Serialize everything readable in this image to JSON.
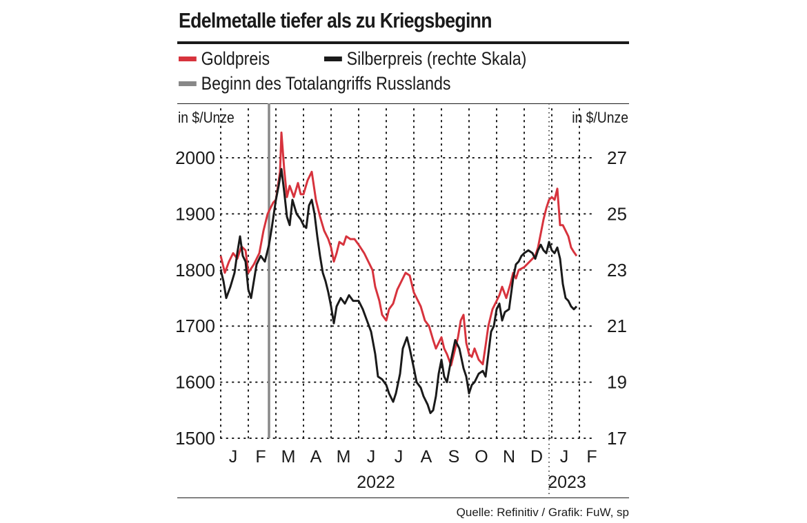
{
  "chart_data": {
    "type": "line",
    "title": "Edelmetalle tiefer als zu Kriegsbeginn",
    "legend": [
      {
        "name": "Goldpreis",
        "color": "#d7333d"
      },
      {
        "name": "Silberpreis (rechte Skala)",
        "color": "#1a1a1a"
      },
      {
        "name": "Beginn des Totalangriffs Russlands",
        "color": "#888888"
      }
    ],
    "left_axis": {
      "label": "in $/Unze",
      "ylim": [
        1500,
        2050
      ],
      "ticks": [
        1500,
        1600,
        1700,
        1800,
        1900,
        2000
      ]
    },
    "right_axis": {
      "label": "in $/Unze",
      "ylim": [
        17,
        28
      ],
      "ticks": [
        17,
        19,
        21,
        23,
        25,
        27
      ]
    },
    "x_axis": {
      "months": [
        "J",
        "F",
        "M",
        "A",
        "M",
        "J",
        "J",
        "A",
        "S",
        "O",
        "N",
        "D",
        "J",
        "F"
      ],
      "years": [
        {
          "label": "2022"
        },
        {
          "label": "2023"
        }
      ],
      "range_months": [
        0,
        13.8
      ]
    },
    "grid": "dotted",
    "event_marker": {
      "month": 1.75,
      "label": "Beginn des Totalangriffs Russlands"
    },
    "series": [
      {
        "name": "Goldpreis",
        "axis": "left",
        "color": "#d7333d",
        "points": [
          [
            0,
            1825
          ],
          [
            0.15,
            1795
          ],
          [
            0.3,
            1815
          ],
          [
            0.45,
            1830
          ],
          [
            0.6,
            1820
          ],
          [
            0.75,
            1842
          ],
          [
            0.9,
            1835
          ],
          [
            1.0,
            1795
          ],
          [
            1.2,
            1810
          ],
          [
            1.4,
            1830
          ],
          [
            1.55,
            1870
          ],
          [
            1.7,
            1900
          ],
          [
            1.75,
            1905
          ],
          [
            1.9,
            1920
          ],
          [
            2.0,
            1925
          ],
          [
            2.15,
            1975
          ],
          [
            2.2,
            2045
          ],
          [
            2.3,
            1980
          ],
          [
            2.4,
            1930
          ],
          [
            2.5,
            1950
          ],
          [
            2.65,
            1930
          ],
          [
            2.8,
            1955
          ],
          [
            2.9,
            1935
          ],
          [
            3.0,
            1935
          ],
          [
            3.15,
            1960
          ],
          [
            3.3,
            1975
          ],
          [
            3.45,
            1925
          ],
          [
            3.6,
            1895
          ],
          [
            3.75,
            1870
          ],
          [
            3.9,
            1855
          ],
          [
            4.0,
            1840
          ],
          [
            4.1,
            1815
          ],
          [
            4.2,
            1830
          ],
          [
            4.3,
            1850
          ],
          [
            4.45,
            1845
          ],
          [
            4.55,
            1860
          ],
          [
            4.7,
            1855
          ],
          [
            4.85,
            1855
          ],
          [
            5.0,
            1845
          ],
          [
            5.2,
            1830
          ],
          [
            5.35,
            1815
          ],
          [
            5.5,
            1800
          ],
          [
            5.6,
            1770
          ],
          [
            5.75,
            1745
          ],
          [
            5.85,
            1720
          ],
          [
            6.0,
            1710
          ],
          [
            6.1,
            1730
          ],
          [
            6.25,
            1740
          ],
          [
            6.4,
            1765
          ],
          [
            6.55,
            1780
          ],
          [
            6.7,
            1795
          ],
          [
            6.85,
            1790
          ],
          [
            7.0,
            1760
          ],
          [
            7.1,
            1750
          ],
          [
            7.25,
            1735
          ],
          [
            7.4,
            1710
          ],
          [
            7.55,
            1700
          ],
          [
            7.7,
            1675
          ],
          [
            7.8,
            1660
          ],
          [
            7.9,
            1670
          ],
          [
            8.0,
            1680
          ],
          [
            8.1,
            1660
          ],
          [
            8.2,
            1650
          ],
          [
            8.35,
            1630
          ],
          [
            8.5,
            1660
          ],
          [
            8.6,
            1680
          ],
          [
            8.7,
            1710
          ],
          [
            8.8,
            1720
          ],
          [
            8.9,
            1670
          ],
          [
            9.0,
            1650
          ],
          [
            9.1,
            1645
          ],
          [
            9.2,
            1660
          ],
          [
            9.35,
            1640
          ],
          [
            9.5,
            1632
          ],
          [
            9.6,
            1665
          ],
          [
            9.7,
            1700
          ],
          [
            9.85,
            1730
          ],
          [
            10.0,
            1745
          ],
          [
            10.1,
            1755
          ],
          [
            10.2,
            1770
          ],
          [
            10.35,
            1750
          ],
          [
            10.5,
            1775
          ],
          [
            10.6,
            1795
          ],
          [
            10.7,
            1785
          ],
          [
            10.8,
            1800
          ],
          [
            11.0,
            1805
          ],
          [
            11.2,
            1815
          ],
          [
            11.4,
            1825
          ],
          [
            11.5,
            1840
          ],
          [
            11.6,
            1865
          ],
          [
            11.7,
            1890
          ],
          [
            11.8,
            1910
          ],
          [
            11.9,
            1925
          ],
          [
            12.0,
            1930
          ],
          [
            12.1,
            1925
          ],
          [
            12.2,
            1945
          ],
          [
            12.3,
            1880
          ],
          [
            12.4,
            1880
          ],
          [
            12.5,
            1870
          ],
          [
            12.6,
            1860
          ],
          [
            12.7,
            1840
          ],
          [
            12.8,
            1832
          ],
          [
            12.9,
            1825
          ]
        ]
      },
      {
        "name": "Silberpreis (rechte Skala)",
        "axis": "right",
        "color": "#1a1a1a",
        "points": [
          [
            0,
            23.0
          ],
          [
            0.1,
            22.6
          ],
          [
            0.2,
            22.0
          ],
          [
            0.35,
            22.4
          ],
          [
            0.5,
            22.9
          ],
          [
            0.6,
            23.6
          ],
          [
            0.7,
            24.2
          ],
          [
            0.8,
            23.5
          ],
          [
            0.9,
            23.3
          ],
          [
            1.0,
            22.3
          ],
          [
            1.1,
            22.0
          ],
          [
            1.2,
            22.6
          ],
          [
            1.3,
            23.2
          ],
          [
            1.45,
            23.5
          ],
          [
            1.6,
            23.3
          ],
          [
            1.75,
            23.9
          ],
          [
            1.85,
            24.5
          ],
          [
            2.0,
            25.5
          ],
          [
            2.1,
            26.0
          ],
          [
            2.2,
            26.6
          ],
          [
            2.3,
            25.8
          ],
          [
            2.4,
            24.9
          ],
          [
            2.5,
            24.6
          ],
          [
            2.6,
            25.5
          ],
          [
            2.75,
            25.0
          ],
          [
            2.9,
            24.8
          ],
          [
            3.0,
            24.6
          ],
          [
            3.1,
            24.5
          ],
          [
            3.2,
            25.3
          ],
          [
            3.3,
            25.5
          ],
          [
            3.4,
            25.0
          ],
          [
            3.5,
            24.2
          ],
          [
            3.6,
            23.5
          ],
          [
            3.7,
            22.9
          ],
          [
            3.8,
            22.6
          ],
          [
            3.9,
            22.2
          ],
          [
            4.0,
            21.7
          ],
          [
            4.1,
            21.1
          ],
          [
            4.2,
            21.7
          ],
          [
            4.35,
            22.0
          ],
          [
            4.5,
            21.8
          ],
          [
            4.65,
            22.1
          ],
          [
            4.8,
            21.9
          ],
          [
            5.0,
            21.9
          ],
          [
            5.15,
            21.6
          ],
          [
            5.3,
            21.2
          ],
          [
            5.45,
            20.8
          ],
          [
            5.6,
            20.0
          ],
          [
            5.7,
            19.2
          ],
          [
            5.85,
            19.1
          ],
          [
            6.0,
            18.9
          ],
          [
            6.1,
            18.6
          ],
          [
            6.25,
            18.3
          ],
          [
            6.35,
            18.6
          ],
          [
            6.5,
            19.3
          ],
          [
            6.6,
            20.2
          ],
          [
            6.75,
            20.6
          ],
          [
            6.85,
            20.2
          ],
          [
            7.0,
            19.5
          ],
          [
            7.1,
            19.0
          ],
          [
            7.25,
            18.8
          ],
          [
            7.35,
            18.5
          ],
          [
            7.5,
            18.2
          ],
          [
            7.6,
            17.9
          ],
          [
            7.7,
            18.0
          ],
          [
            7.8,
            18.5
          ],
          [
            7.9,
            19.3
          ],
          [
            8.0,
            19.8
          ],
          [
            8.1,
            19.2
          ],
          [
            8.2,
            19.0
          ],
          [
            8.35,
            19.8
          ],
          [
            8.5,
            20.5
          ],
          [
            8.65,
            20.2
          ],
          [
            8.8,
            19.5
          ],
          [
            8.9,
            19.2
          ],
          [
            9.0,
            18.6
          ],
          [
            9.1,
            18.9
          ],
          [
            9.2,
            19.0
          ],
          [
            9.35,
            19.3
          ],
          [
            9.5,
            19.4
          ],
          [
            9.6,
            19.2
          ],
          [
            9.7,
            20.0
          ],
          [
            9.8,
            20.8
          ],
          [
            9.9,
            21.0
          ],
          [
            10.0,
            21.6
          ],
          [
            10.1,
            21.8
          ],
          [
            10.2,
            21.2
          ],
          [
            10.3,
            21.5
          ],
          [
            10.45,
            21.6
          ],
          [
            10.6,
            22.7
          ],
          [
            10.7,
            23.2
          ],
          [
            10.8,
            23.3
          ],
          [
            10.9,
            23.5
          ],
          [
            11.0,
            23.6
          ],
          [
            11.15,
            23.7
          ],
          [
            11.3,
            23.6
          ],
          [
            11.4,
            23.4
          ],
          [
            11.5,
            23.7
          ],
          [
            11.6,
            23.9
          ],
          [
            11.7,
            23.7
          ],
          [
            11.8,
            23.6
          ],
          [
            11.9,
            24.0
          ],
          [
            12.0,
            23.7
          ],
          [
            12.1,
            23.6
          ],
          [
            12.2,
            23.8
          ],
          [
            12.3,
            23.4
          ],
          [
            12.4,
            22.5
          ],
          [
            12.5,
            22.0
          ],
          [
            12.6,
            21.9
          ],
          [
            12.7,
            21.7
          ],
          [
            12.8,
            21.6
          ],
          [
            12.9,
            21.7
          ]
        ]
      }
    ]
  },
  "source": "Quelle: Refinitiv / Grafik: FuW, sp"
}
